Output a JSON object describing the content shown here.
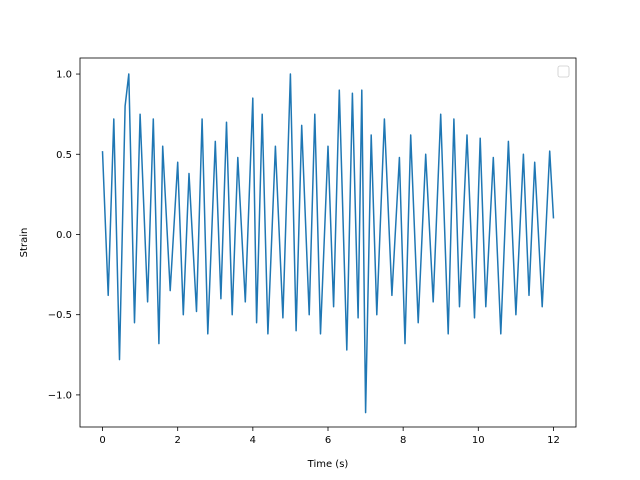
{
  "chart_data": {
    "type": "line",
    "title": "",
    "xlabel": "Time (s)",
    "ylabel": "Strain",
    "xlim": [
      -0.6,
      12.6
    ],
    "ylim": [
      -1.2,
      1.1
    ],
    "x_ticks": [
      0,
      2,
      4,
      6,
      8,
      10,
      12
    ],
    "y_ticks": [
      -1.0,
      -0.5,
      0.0,
      0.5,
      1.0
    ],
    "x_tick_labels": [
      "0",
      "2",
      "4",
      "6",
      "8",
      "10",
      "12"
    ],
    "y_tick_labels": [
      "−1.0",
      "−0.5",
      "0.0",
      "0.5",
      "1.0"
    ],
    "grid": false,
    "legend": {
      "placement": "top-right",
      "entries": []
    },
    "series": [
      {
        "color": "#1f77b4",
        "x": [
          0.0,
          0.15,
          0.3,
          0.45,
          0.6,
          0.7,
          0.85,
          1.0,
          1.2,
          1.35,
          1.5,
          1.6,
          1.8,
          2.0,
          2.15,
          2.3,
          2.5,
          2.65,
          2.8,
          3.0,
          3.15,
          3.3,
          3.45,
          3.6,
          3.8,
          4.0,
          4.1,
          4.25,
          4.4,
          4.6,
          4.8,
          5.0,
          5.15,
          5.3,
          5.5,
          5.65,
          5.8,
          6.0,
          6.15,
          6.3,
          6.5,
          6.65,
          6.8,
          6.9,
          7.0,
          7.15,
          7.3,
          7.5,
          7.7,
          7.9,
          8.05,
          8.2,
          8.4,
          8.6,
          8.8,
          9.0,
          9.2,
          9.35,
          9.5,
          9.7,
          9.9,
          10.05,
          10.2,
          10.4,
          10.6,
          10.8,
          11.0,
          11.2,
          11.35,
          11.5,
          11.7,
          11.9,
          12.0
        ],
        "y": [
          0.52,
          -0.38,
          0.72,
          -0.78,
          0.8,
          1.0,
          -0.55,
          0.75,
          -0.42,
          0.72,
          -0.68,
          0.55,
          -0.35,
          0.45,
          -0.5,
          0.38,
          -0.48,
          0.72,
          -0.62,
          0.58,
          -0.4,
          0.7,
          -0.5,
          0.48,
          -0.42,
          0.85,
          -0.55,
          0.75,
          -0.62,
          0.55,
          -0.52,
          1.0,
          -0.6,
          0.68,
          -0.5,
          0.75,
          -0.62,
          0.55,
          -0.45,
          0.9,
          -0.72,
          0.88,
          -0.52,
          0.9,
          -1.11,
          0.62,
          -0.5,
          0.72,
          -0.38,
          0.48,
          -0.68,
          0.62,
          -0.55,
          0.5,
          -0.42,
          0.75,
          -0.62,
          0.72,
          -0.45,
          0.62,
          -0.52,
          0.6,
          -0.45,
          0.48,
          -0.62,
          0.58,
          -0.5,
          0.5,
          -0.38,
          0.45,
          -0.45,
          0.52,
          0.1
        ]
      }
    ]
  }
}
